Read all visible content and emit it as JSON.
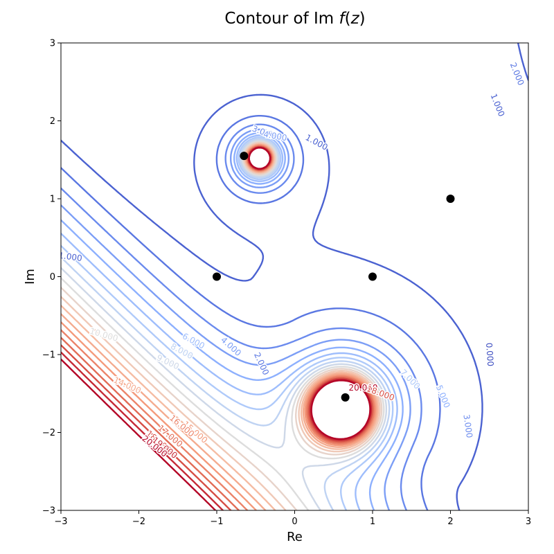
{
  "chart_data": {
    "type": "contour",
    "title": "Contour of Im f(z)",
    "title_parts": [
      "Contour of Im ",
      "f",
      "(",
      "z",
      ")"
    ],
    "xlabel": "Re",
    "ylabel": "Im",
    "xlim": [
      -3,
      3
    ],
    "ylim": [
      -3,
      3
    ],
    "xticks": [
      -3,
      -2,
      -1,
      0,
      1,
      2,
      3
    ],
    "yticks": [
      -3,
      -2,
      -1,
      0,
      1,
      2,
      3
    ],
    "xtick_labels": [
      "−3",
      "−2",
      "−1",
      "0",
      "1",
      "2",
      "3"
    ],
    "ytick_labels": [
      "−3",
      "−2",
      "−1",
      "0",
      "1",
      "2",
      "3"
    ],
    "grid": false,
    "colormap": "coolwarm",
    "color_low": "#3b4cc0",
    "color_mid": "#dddddd",
    "color_high": "#b40426",
    "levels": [
      0,
      1,
      2,
      3,
      4,
      5,
      6,
      7,
      8,
      9,
      10,
      11,
      12,
      13,
      14,
      15,
      16,
      17,
      18,
      19,
      20
    ],
    "points": [
      {
        "x": -0.65,
        "y": 1.55
      },
      {
        "x": -1.0,
        "y": 0.0
      },
      {
        "x": 1.0,
        "y": 0.0
      },
      {
        "x": 2.0,
        "y": 1.0
      },
      {
        "x": 0.65,
        "y": -1.55
      }
    ],
    "point_color": "#000000",
    "contour_labels": [
      {
        "text": "1.000",
        "x": 2.6,
        "y": 2.2,
        "level": 1,
        "angle": 68
      },
      {
        "text": "2.000",
        "x": 2.85,
        "y": 2.6,
        "level": 2,
        "angle": 68
      },
      {
        "text": "1.000",
        "x": 0.28,
        "y": 1.72,
        "level": 1,
        "angle": 28
      },
      {
        "text": "0.000",
        "x": 2.5,
        "y": -1.0,
        "level": 0,
        "angle": 86
      },
      {
        "text": "1.000",
        "x": -2.88,
        "y": 0.25,
        "level": 1,
        "angle": 8
      },
      {
        "text": "2.000",
        "x": -0.43,
        "y": -1.12,
        "level": 2,
        "angle": 65
      },
      {
        "text": "4.000",
        "x": -0.82,
        "y": -0.9,
        "level": 4,
        "angle": 42
      },
      {
        "text": "6.000",
        "x": -1.3,
        "y": -0.83,
        "level": 6,
        "angle": 28
      },
      {
        "text": "8.000",
        "x": -1.45,
        "y": -0.96,
        "level": 8,
        "angle": 28
      },
      {
        "text": "9.000",
        "x": -1.63,
        "y": -1.1,
        "level": 9,
        "angle": 25
      },
      {
        "text": "10.000",
        "x": -2.45,
        "y": -0.75,
        "level": 10,
        "angle": 16
      },
      {
        "text": "14.000",
        "x": -2.15,
        "y": -1.4,
        "level": 14,
        "angle": 24
      },
      {
        "text": "15.000",
        "x": -1.28,
        "y": -2.0,
        "level": 15,
        "angle": 40
      },
      {
        "text": "16.000",
        "x": -1.45,
        "y": -1.92,
        "level": 16,
        "angle": 40
      },
      {
        "text": "17.000",
        "x": -1.6,
        "y": -2.05,
        "level": 17,
        "angle": 40
      },
      {
        "text": "18.000",
        "x": -1.75,
        "y": -2.12,
        "level": 18,
        "angle": 40
      },
      {
        "text": "19.000",
        "x": -1.67,
        "y": -2.2,
        "level": 19,
        "angle": 38
      },
      {
        "text": "20.000",
        "x": -1.8,
        "y": -2.18,
        "level": 20,
        "angle": 38
      },
      {
        "text": "7.000",
        "x": 1.48,
        "y": -1.32,
        "level": 7,
        "angle": 45
      },
      {
        "text": "5.000",
        "x": 1.9,
        "y": -1.54,
        "level": 5,
        "angle": 68
      },
      {
        "text": "3.000",
        "x": 2.22,
        "y": -1.92,
        "level": 3,
        "angle": 82
      },
      {
        "text": "20.000",
        "x": 0.88,
        "y": -1.43,
        "level": 20,
        "angle": 0
      },
      {
        "text": "18.000",
        "x": 1.1,
        "y": -1.5,
        "level": 18,
        "angle": 20
      },
      {
        "text": "3.000",
        "x": -0.4,
        "y": 1.85,
        "level": 3,
        "angle": 20
      },
      {
        "text": "4.000",
        "x": -0.25,
        "y": 1.8,
        "level": 4,
        "angle": 10
      }
    ]
  }
}
